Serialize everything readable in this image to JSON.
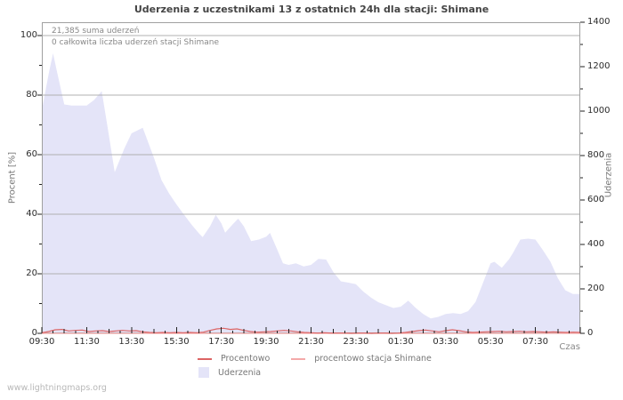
{
  "title": "Uderzenia z uczestnikami 13 z ostatnich 24h dla stacji: Shimane",
  "annotations": {
    "total": "21,385 suma uderzeń",
    "station": "0 całkowita liczba uderzeń stacji Shimane"
  },
  "watermark": "www.lightningmaps.org",
  "axes": {
    "left_title": "Procent  [%]",
    "right_title": "Uderzenia",
    "x_title": "Czas"
  },
  "legend": {
    "procentowo": "Procentowo",
    "station": "procentowo stacja Shimane",
    "uderzenia": "Uderzenia"
  },
  "colors": {
    "area_fill": "#e4e4f8",
    "procentowo_line": "#dc6464",
    "station_line": "#f4a9a9",
    "gridline": "#b0b0b0",
    "border": "#a0a0a0",
    "tick": "#222222"
  },
  "chart_data": {
    "type": "area",
    "title": "Uderzenia z uczestnikami 13 z ostatnich 24h dla stacji: Shimane",
    "xlabel": "Czas",
    "ylabel_left": "Procent [%]",
    "ylabel_right": "Uderzenia",
    "x_range_hours": 24,
    "x_tick_step_hours": 2,
    "x_tick_labels": [
      "09:30",
      "11:30",
      "13:30",
      "15:30",
      "17:30",
      "19:30",
      "21:30",
      "23:30",
      "01:30",
      "03:30",
      "05:30",
      "07:30"
    ],
    "left_axis": {
      "ticks": [
        0,
        20,
        40,
        60,
        80,
        100
      ],
      "minor_step": 10,
      "max_at_top": 104.5,
      "ylim": [
        0,
        100
      ]
    },
    "right_axis": {
      "ticks": [
        0,
        200,
        400,
        600,
        800,
        1000,
        1200,
        1400
      ],
      "minor_step": 100,
      "max_at_top": 1400,
      "ylim": [
        0,
        1400
      ]
    },
    "grid": "horizontal",
    "legend_position": "bottom",
    "series": [
      {
        "name": "Uderzenia",
        "kind": "area",
        "axis": "right",
        "color": "#e4e4f8",
        "points": [
          [
            0,
            1005
          ],
          [
            0.33,
            1180
          ],
          [
            0.5,
            1260
          ],
          [
            0.67,
            1180
          ],
          [
            1,
            1030
          ],
          [
            1.33,
            1025
          ],
          [
            1.67,
            1025
          ],
          [
            2,
            1025
          ],
          [
            2.33,
            1050
          ],
          [
            2.67,
            1090
          ],
          [
            3,
            885
          ],
          [
            3.25,
            725
          ],
          [
            3.67,
            830
          ],
          [
            4,
            900
          ],
          [
            4.5,
            925
          ],
          [
            5,
            790
          ],
          [
            5.33,
            690
          ],
          [
            5.67,
            630
          ],
          [
            6,
            580
          ],
          [
            6.33,
            535
          ],
          [
            6.67,
            490
          ],
          [
            7,
            450
          ],
          [
            7.17,
            433
          ],
          [
            7.5,
            482
          ],
          [
            7.75,
            533
          ],
          [
            8,
            495
          ],
          [
            8.17,
            453
          ],
          [
            8.5,
            490
          ],
          [
            8.75,
            516
          ],
          [
            9,
            482
          ],
          [
            9.33,
            415
          ],
          [
            9.67,
            422
          ],
          [
            10,
            435
          ],
          [
            10.17,
            452
          ],
          [
            10.5,
            375
          ],
          [
            10.75,
            315
          ],
          [
            11,
            308
          ],
          [
            11.33,
            315
          ],
          [
            11.67,
            301
          ],
          [
            12,
            308
          ],
          [
            12.33,
            335
          ],
          [
            12.67,
            332
          ],
          [
            13,
            275
          ],
          [
            13.33,
            234
          ],
          [
            13.67,
            228
          ],
          [
            14,
            221
          ],
          [
            14.33,
            188
          ],
          [
            14.67,
            161
          ],
          [
            15,
            140
          ],
          [
            15.33,
            127
          ],
          [
            15.67,
            114
          ],
          [
            16,
            120
          ],
          [
            16.33,
            147
          ],
          [
            16.67,
            114
          ],
          [
            17,
            87
          ],
          [
            17.33,
            67
          ],
          [
            17.67,
            74
          ],
          [
            18,
            87
          ],
          [
            18.33,
            91
          ],
          [
            18.67,
            87
          ],
          [
            19,
            100
          ],
          [
            19.33,
            141
          ],
          [
            19.67,
            228
          ],
          [
            20,
            315
          ],
          [
            20.17,
            322
          ],
          [
            20.5,
            295
          ],
          [
            20.83,
            334
          ],
          [
            21,
            362
          ],
          [
            21.33,
            422
          ],
          [
            21.67,
            426
          ],
          [
            22,
            422
          ],
          [
            22.33,
            375
          ],
          [
            22.67,
            322
          ],
          [
            23,
            248
          ],
          [
            23.33,
            194
          ],
          [
            23.67,
            177
          ],
          [
            24,
            177
          ]
        ]
      },
      {
        "name": "procentowo stacja Shimane",
        "kind": "line",
        "axis": "left",
        "color": "#f4a9a9",
        "points": [
          [
            0,
            0
          ],
          [
            24,
            0
          ]
        ]
      },
      {
        "name": "Procentowo",
        "kind": "line",
        "axis": "left",
        "color": "#dc6464",
        "points": [
          [
            0,
            0.2
          ],
          [
            0.3,
            0.6
          ],
          [
            0.6,
            1.2
          ],
          [
            0.9,
            1.3
          ],
          [
            1.2,
            0.8
          ],
          [
            1.5,
            1.0
          ],
          [
            1.8,
            1.1
          ],
          [
            2.1,
            0.6
          ],
          [
            2.4,
            0.8
          ],
          [
            2.7,
            0.9
          ],
          [
            3.0,
            0.6
          ],
          [
            3.3,
            0.8
          ],
          [
            3.6,
            1.0
          ],
          [
            3.9,
            0.8
          ],
          [
            4.2,
            0.9
          ],
          [
            4.5,
            0.5
          ],
          [
            4.8,
            0.3
          ],
          [
            5.1,
            0.2
          ],
          [
            5.4,
            0.3
          ],
          [
            5.7,
            0.2
          ],
          [
            6.0,
            0.3
          ],
          [
            6.3,
            0.2
          ],
          [
            6.6,
            0.3
          ],
          [
            6.9,
            0.2
          ],
          [
            7.2,
            0.4
          ],
          [
            7.5,
            1.0
          ],
          [
            7.8,
            1.5
          ],
          [
            8.1,
            1.7
          ],
          [
            8.4,
            1.3
          ],
          [
            8.7,
            1.5
          ],
          [
            9.0,
            1.0
          ],
          [
            9.3,
            0.6
          ],
          [
            9.6,
            0.4
          ],
          [
            9.9,
            0.5
          ],
          [
            10.2,
            0.6
          ],
          [
            10.5,
            0.8
          ],
          [
            10.8,
            1.0
          ],
          [
            11.1,
            0.8
          ],
          [
            11.4,
            0.5
          ],
          [
            11.7,
            0.3
          ],
          [
            12.0,
            0.2
          ],
          [
            12.3,
            0.1
          ],
          [
            12.6,
            0.2
          ],
          [
            12.9,
            0.1
          ],
          [
            13.2,
            0.1
          ],
          [
            13.5,
            0.1
          ],
          [
            13.8,
            0.0
          ],
          [
            14.1,
            0.1
          ],
          [
            14.4,
            0.1
          ],
          [
            14.7,
            0.0
          ],
          [
            15.0,
            0.1
          ],
          [
            15.3,
            0.1
          ],
          [
            15.6,
            0.0
          ],
          [
            15.9,
            0.1
          ],
          [
            16.2,
            0.3
          ],
          [
            16.5,
            0.6
          ],
          [
            16.8,
            0.9
          ],
          [
            17.1,
            1.1
          ],
          [
            17.4,
            0.8
          ],
          [
            17.7,
            0.5
          ],
          [
            18.0,
            0.9
          ],
          [
            18.3,
            1.2
          ],
          [
            18.6,
            0.9
          ],
          [
            18.9,
            0.5
          ],
          [
            19.2,
            0.3
          ],
          [
            19.5,
            0.4
          ],
          [
            19.8,
            0.5
          ],
          [
            20.1,
            0.6
          ],
          [
            20.4,
            0.7
          ],
          [
            20.7,
            0.5
          ],
          [
            21.0,
            0.6
          ],
          [
            21.3,
            0.7
          ],
          [
            21.6,
            0.5
          ],
          [
            21.9,
            0.6
          ],
          [
            22.2,
            0.5
          ],
          [
            22.5,
            0.4
          ],
          [
            22.8,
            0.5
          ],
          [
            23.1,
            0.4
          ],
          [
            23.4,
            0.3
          ],
          [
            23.7,
            0.4
          ],
          [
            24.0,
            0.3
          ]
        ]
      }
    ]
  }
}
